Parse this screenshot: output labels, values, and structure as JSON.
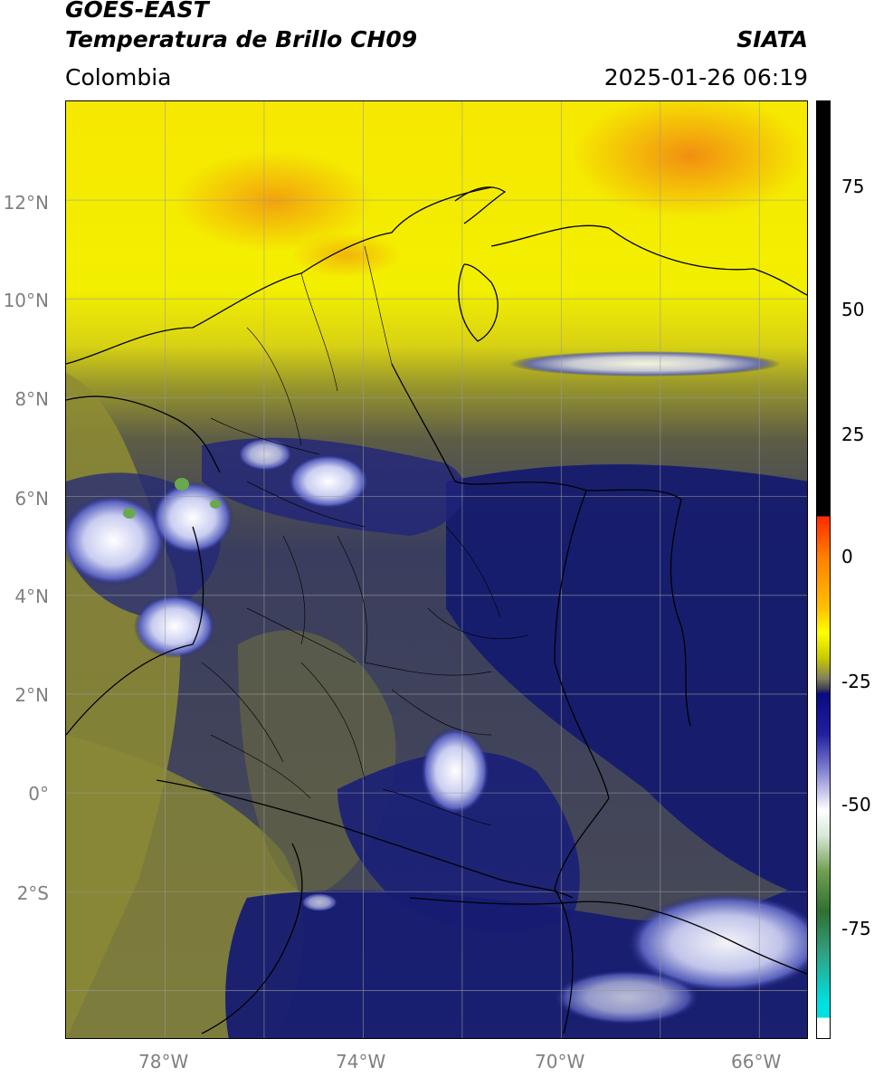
{
  "header": {
    "satellite": "GOES-EAST",
    "product": "Temperatura de Brillo CH09",
    "region": "Colombia",
    "brand": "SIATA",
    "datetime": "2025-01-26 06:19"
  },
  "map": {
    "lat_labels": [
      "12°N",
      "10°N",
      "8°N",
      "6°N",
      "4°N",
      "2°N",
      "0°",
      "2°S"
    ],
    "lon_labels": [
      "78°W",
      "74°W",
      "70°W",
      "66°W"
    ],
    "lat_range": [
      -5,
      14
    ],
    "lon_range": [
      -80,
      -65
    ],
    "grid": true,
    "colors": {
      "warm_yellow": "#f2ee00",
      "hot_orange": "#f39a10",
      "olive": "#9a9a2a",
      "gray_olive": "#5c5c44",
      "navy": "#1b1f7a",
      "deep_navy": "#0f1566",
      "cloud_white": "#e8ecf8",
      "cloud_green": "#6aa84f"
    }
  },
  "colorbar": {
    "ticks": [
      "75",
      "50",
      "25",
      "0",
      "-25",
      "-50",
      "-75"
    ],
    "range": [
      -95,
      90
    ]
  }
}
